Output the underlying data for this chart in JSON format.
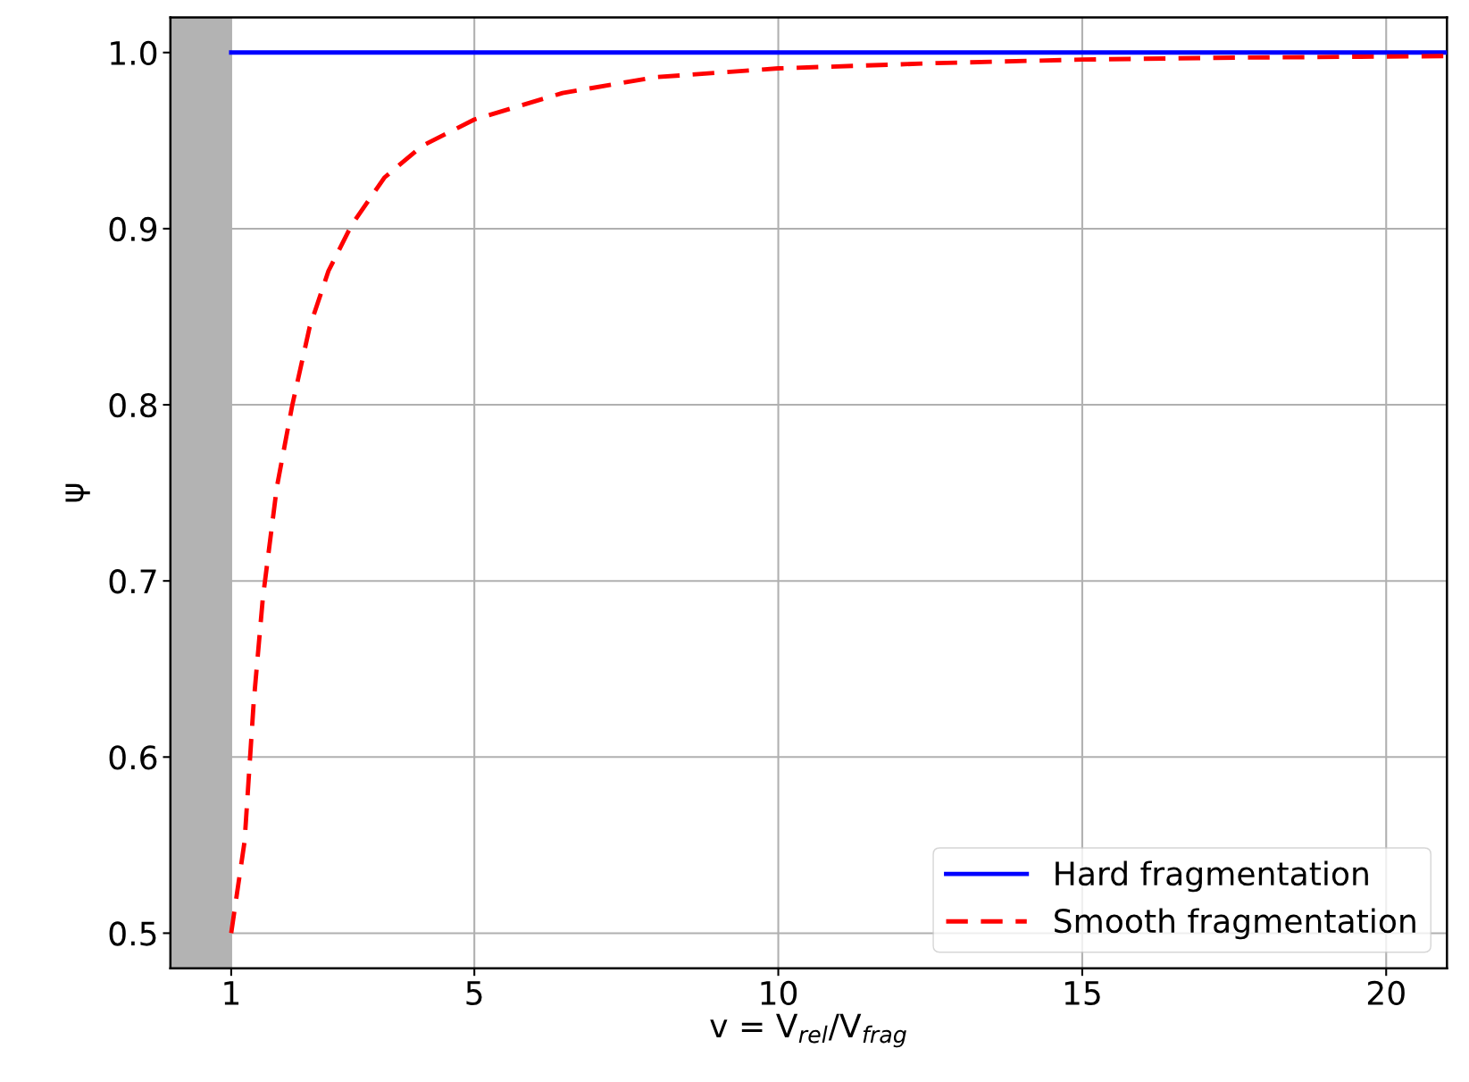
{
  "chart_data": {
    "type": "line",
    "xlabel": "v = V$_{rel}$/V$_{frag}$",
    "ylabel": "ψ",
    "xlim": [
      0,
      21
    ],
    "ylim": [
      0.48,
      1.02
    ],
    "xticks": [
      1,
      5,
      10,
      15,
      20
    ],
    "yticks": [
      0.5,
      0.6,
      0.7,
      0.8,
      0.9,
      {
        "value": 1,
        "label": "1.0"
      }
    ],
    "grid": true,
    "legend": "bottom right",
    "bands": [
      {
        "axis": "x",
        "from": 0,
        "to": 1,
        "color": "#b3b3b3"
      }
    ],
    "series": [
      {
        "name": "Hard fragmentation",
        "color": "#0000ff",
        "line_style": "solid",
        "x": [
          1,
          21
        ],
        "values": [
          1.0,
          1.0
        ]
      },
      {
        "name": "Smooth fragmentation",
        "color": "#ff0000",
        "line_style": "dashed",
        "x": [
          1,
          1.22,
          1.37,
          1.52,
          1.75,
          2.0,
          2.29,
          2.6,
          2.98,
          3.52,
          4.14,
          5,
          6.45,
          7.98,
          10,
          12.6,
          15,
          17.2,
          21
        ],
        "values": [
          0.5,
          0.552,
          0.631,
          0.69,
          0.753,
          0.799,
          0.844,
          0.876,
          0.902,
          0.929,
          0.947,
          0.962,
          0.977,
          0.986,
          0.991,
          0.994,
          0.996,
          0.997,
          0.998
        ]
      }
    ]
  }
}
